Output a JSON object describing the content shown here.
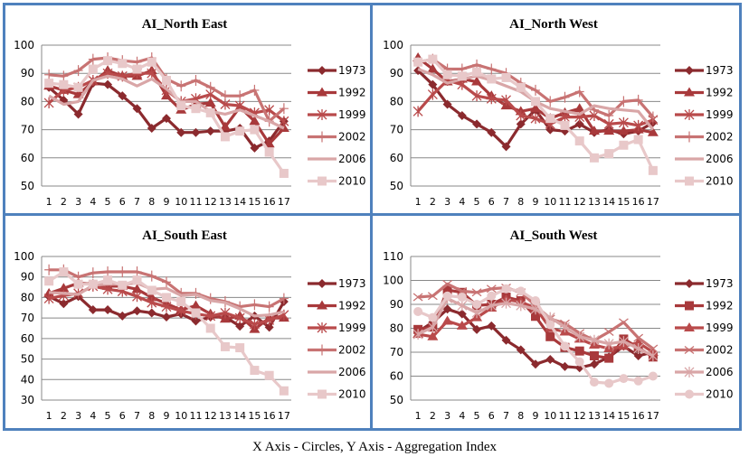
{
  "caption": "X Axis - Circles, Y Axis - Aggregation Index",
  "colors": {
    "border": "#4f81bd",
    "gridline": "#888888",
    "series": [
      "#8b2a2e",
      "#a8393b",
      "#b94a4b",
      "#c87373",
      "#d9a6a7",
      "#e8c8c9"
    ]
  },
  "chart_data": [
    {
      "type": "line",
      "title": "AI_North  East",
      "categories": [
        "1",
        "2",
        "3",
        "4",
        "5",
        "6",
        "7",
        "8",
        "9",
        "10",
        "11",
        "12",
        "13",
        "14",
        "15",
        "16",
        "17"
      ],
      "ylim": [
        50,
        100
      ],
      "yticks": [
        "100",
        "90",
        "80",
        "70",
        "60",
        "50"
      ],
      "grid": true,
      "legend": "right",
      "series": [
        {
          "name": "1973",
          "marker": "diamond",
          "values": [
            85,
            80.5,
            75.5,
            86.5,
            86,
            82,
            77.5,
            70.5,
            74,
            69,
            69,
            69.5,
            69.5,
            70.5,
            63.5,
            66,
            73
          ]
        },
        {
          "name": "1992",
          "marker": "triangle",
          "values": [
            85.5,
            84,
            82.5,
            87,
            91,
            89,
            89,
            91,
            82,
            77,
            79,
            79.5,
            71,
            78,
            73,
            65,
            70.5
          ]
        },
        {
          "name": "1999",
          "marker": "star",
          "values": [
            79.5,
            84,
            85,
            87.5,
            90,
            89,
            90,
            90,
            84,
            80,
            81,
            82.5,
            79,
            78.5,
            76,
            77,
            73
          ]
        },
        {
          "name": "2002",
          "marker": "plus",
          "values": [
            89.5,
            89,
            91,
            95,
            95.5,
            94.5,
            94,
            95.5,
            88,
            85.5,
            87.5,
            85,
            82,
            82,
            84,
            73,
            77.5
          ]
        },
        {
          "name": "2006",
          "marker": "none",
          "values": [
            82,
            79,
            80,
            87.5,
            89,
            88,
            85.5,
            88,
            84.5,
            80,
            80,
            76.5,
            75.5,
            77,
            75,
            73,
            70.5
          ]
        },
        {
          "name": "2010",
          "marker": "square",
          "values": [
            86.5,
            86,
            85,
            91.5,
            94.5,
            93.5,
            91.5,
            94,
            87.5,
            78.5,
            77.5,
            76,
            67.5,
            69.5,
            70,
            62,
            54.5
          ]
        }
      ]
    },
    {
      "type": "line",
      "title": "AI_North  West",
      "categories": [
        "1",
        "2",
        "3",
        "4",
        "5",
        "6",
        "7",
        "8",
        "9",
        "10",
        "11",
        "12",
        "13",
        "14",
        "15",
        "16",
        "17"
      ],
      "ylim": [
        50,
        100
      ],
      "yticks": [
        "100",
        "90",
        "80",
        "70",
        "60",
        "50"
      ],
      "grid": true,
      "legend": "right",
      "series": [
        {
          "name": "1973",
          "marker": "diamond",
          "values": [
            91,
            86,
            79,
            75,
            72,
            69,
            64,
            72,
            77,
            70,
            69.5,
            72,
            69,
            70,
            68.5,
            69.5,
            72.5
          ]
        },
        {
          "name": "1992",
          "marker": "triangle",
          "values": [
            95.5,
            91.5,
            87,
            88,
            87,
            82,
            78.5,
            76.5,
            77.5,
            74,
            76,
            77.5,
            69.5,
            69.5,
            69.5,
            70,
            69
          ]
        },
        {
          "name": "1999",
          "marker": "star",
          "values": [
            76.5,
            82.5,
            87.5,
            86,
            82,
            81,
            80.5,
            75,
            74,
            72,
            74.5,
            74.5,
            75,
            72,
            72.5,
            71.5,
            73.5
          ]
        },
        {
          "name": "2002",
          "marker": "plus",
          "values": [
            94,
            95,
            91.5,
            91.5,
            93,
            91.5,
            90,
            86.5,
            84,
            80,
            81.5,
            83.5,
            77,
            75,
            80,
            80.5,
            74.5
          ]
        },
        {
          "name": "2006",
          "marker": "none",
          "values": [
            91.5,
            89.5,
            86.5,
            88,
            89,
            87.5,
            85.5,
            83.5,
            80,
            77.5,
            76.5,
            75.5,
            78.5,
            77.5,
            77,
            76.5,
            70
          ]
        },
        {
          "name": "2010",
          "marker": "square",
          "values": [
            94,
            95,
            89.5,
            89,
            90.5,
            88,
            88.5,
            85,
            80,
            74,
            71.5,
            66,
            60,
            61.5,
            64.5,
            66.5,
            55.5
          ]
        }
      ]
    },
    {
      "type": "line",
      "title": "AI_South  East",
      "categories": [
        "1",
        "2",
        "3",
        "4",
        "5",
        "6",
        "7",
        "8",
        "9",
        "10",
        "11",
        "12",
        "13",
        "14",
        "15",
        "16",
        "17"
      ],
      "ylim": [
        30,
        100
      ],
      "yticks": [
        "100",
        "90",
        "80",
        "70",
        "60",
        "50",
        "40",
        "30"
      ],
      "grid": true,
      "legend": "right",
      "series": [
        {
          "name": "1973",
          "marker": "diamond",
          "values": [
            80.5,
            77,
            80.5,
            74,
            74,
            71,
            73.5,
            72.5,
            70.5,
            72,
            68.5,
            70.5,
            70.5,
            66,
            71,
            65.5,
            78
          ]
        },
        {
          "name": "1992",
          "marker": "triangle",
          "values": [
            82,
            84.5,
            87,
            86.5,
            85.5,
            85.5,
            84,
            80,
            77,
            74,
            76,
            72,
            69.5,
            71,
            64.5,
            70,
            70
          ]
        },
        {
          "name": "1999",
          "marker": "star",
          "values": [
            79.5,
            81,
            82,
            85.5,
            84,
            83,
            80.5,
            77.5,
            75.5,
            73.5,
            72,
            71,
            72.5,
            70,
            67,
            69,
            71.5
          ]
        },
        {
          "name": "2002",
          "marker": "plus",
          "values": [
            93.5,
            93.5,
            90,
            92,
            92.5,
            92.5,
            92.5,
            90.5,
            87.5,
            82,
            82,
            79.5,
            78,
            75.5,
            76.5,
            75.5,
            79.5
          ]
        },
        {
          "name": "2006",
          "marker": "none",
          "values": [
            82.5,
            82,
            81.5,
            86,
            86.5,
            86.5,
            87,
            84,
            84.5,
            81,
            81.5,
            78.5,
            77.5,
            74.5,
            71,
            71.5,
            73
          ]
        },
        {
          "name": "2010",
          "marker": "square",
          "values": [
            88,
            92.5,
            86.5,
            86.5,
            88.5,
            86,
            88.5,
            83.5,
            80,
            78,
            72.5,
            65,
            56,
            55.5,
            44.5,
            42,
            34.5
          ]
        }
      ]
    },
    {
      "type": "line",
      "title": "AI_South  West",
      "categories": [
        "1",
        "2",
        "3",
        "4",
        "5",
        "6",
        "7",
        "8",
        "9",
        "10",
        "11",
        "12",
        "13",
        "14",
        "15",
        "16",
        "17"
      ],
      "ylim": [
        50,
        110
      ],
      "yticks": [
        "110",
        "100",
        "90",
        "80",
        "70",
        "60",
        "50"
      ],
      "grid": true,
      "legend": "right",
      "series": [
        {
          "name": "1973",
          "marker": "diamond",
          "values": [
            78.5,
            82.5,
            88,
            86,
            79.5,
            81,
            75,
            71,
            65,
            67,
            64,
            63.5,
            65,
            68,
            72.5,
            68.5,
            70
          ]
        },
        {
          "name": "1992",
          "marker": "square",
          "values": [
            79.5,
            80.5,
            96,
            95,
            89.5,
            90,
            93,
            91.5,
            85,
            76.5,
            72,
            70.5,
            68.5,
            67.5,
            75.5,
            72,
            68
          ]
        },
        {
          "name": "1999",
          "marker": "triangle",
          "values": [
            77.5,
            76.5,
            83,
            81,
            84.5,
            88.5,
            92,
            91,
            88.5,
            80,
            78.5,
            75.5,
            73,
            71.5,
            72.5,
            74,
            70
          ]
        },
        {
          "name": "2002",
          "marker": "x",
          "values": [
            93,
            93.5,
            98.5,
            95.5,
            95,
            96.5,
            97,
            95,
            89.5,
            84,
            82,
            78,
            75,
            78.5,
            82.5,
            76,
            71.5
          ]
        },
        {
          "name": "2006",
          "marker": "star",
          "values": [
            77.5,
            80.5,
            92.5,
            89.5,
            86.5,
            89.5,
            90.5,
            89.5,
            88,
            84.5,
            80.5,
            76.5,
            75,
            73.5,
            74.5,
            71.5,
            68.5
          ]
        },
        {
          "name": "2010",
          "marker": "circle",
          "values": [
            87,
            84.5,
            93.5,
            93,
            90,
            93.5,
            96.5,
            95.5,
            91.5,
            81.5,
            72.5,
            66,
            57.5,
            57,
            59,
            58,
            60
          ]
        }
      ]
    }
  ]
}
